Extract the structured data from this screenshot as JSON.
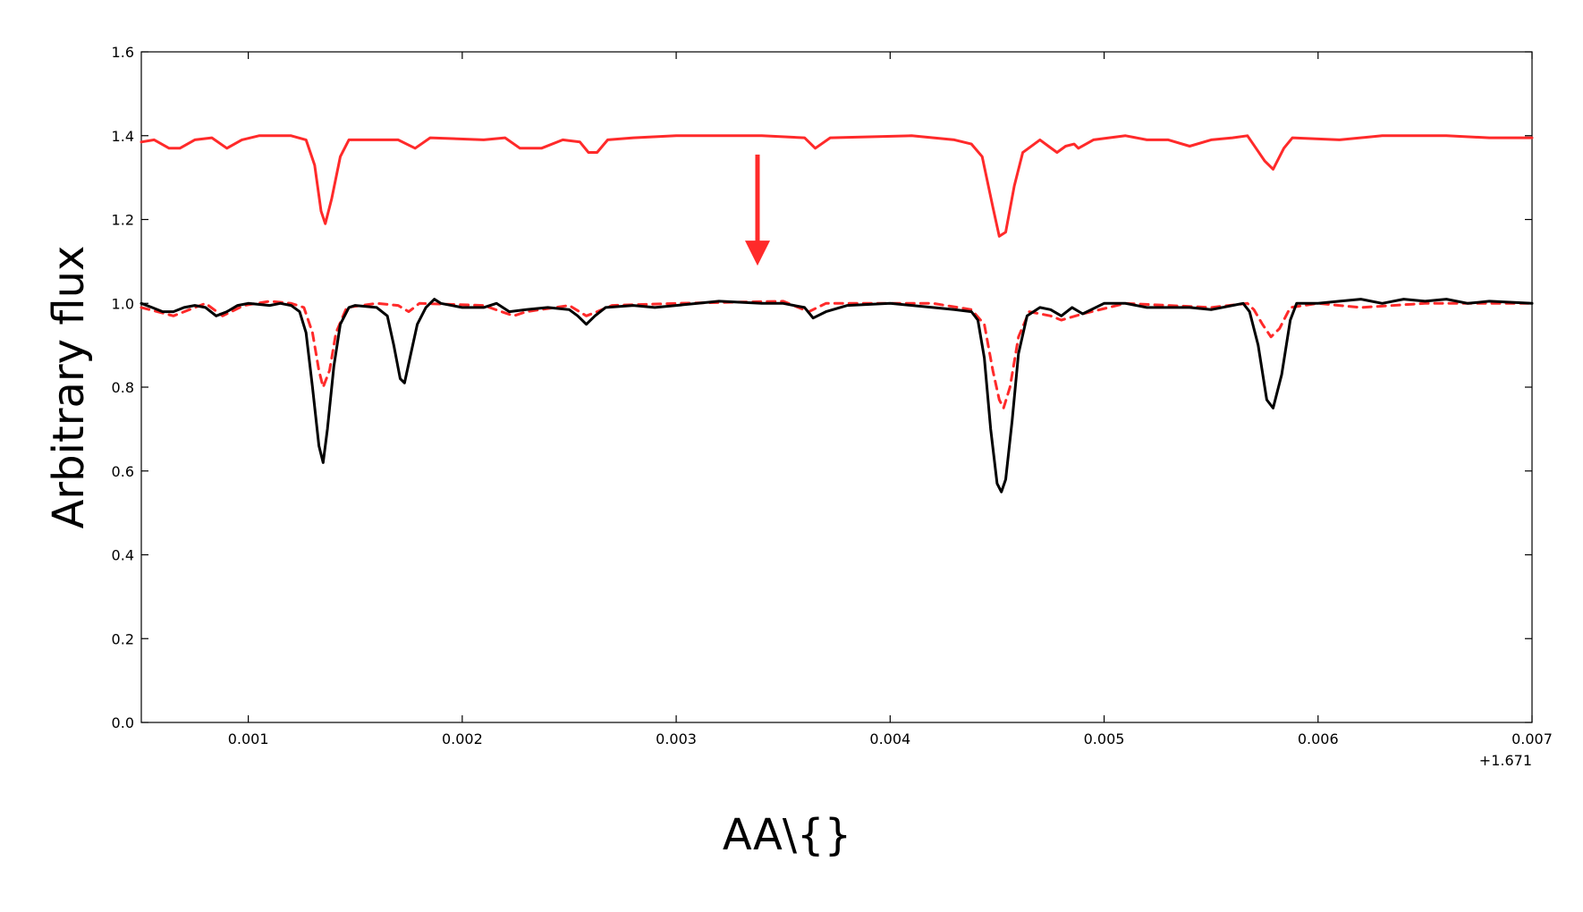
{
  "chart_data": {
    "type": "line",
    "xlabel": "AA\\{}",
    "ylabel": "Arbitrary flux",
    "x_offset_label": "+1.671",
    "xlim": [
      0.0005,
      0.007
    ],
    "ylim": [
      0.0,
      1.6
    ],
    "x_ticks": [
      0.001,
      0.002,
      0.003,
      0.004,
      0.005,
      0.006,
      0.007
    ],
    "x_tick_labels": [
      "0.001",
      "0.002",
      "0.003",
      "0.004",
      "0.005",
      "0.006",
      "0.007"
    ],
    "y_ticks": [
      0.0,
      0.2,
      0.4,
      0.6,
      0.8,
      1.0,
      1.2,
      1.4,
      1.6
    ],
    "y_tick_labels": [
      "0.0",
      "0.2",
      "0.4",
      "0.6",
      "0.8",
      "1.0",
      "1.2",
      "1.4",
      "1.6"
    ],
    "grid": false,
    "annotation_arrow": {
      "x": 0.00338,
      "y_start": 1.355,
      "y_end": 1.09,
      "color": "#ff2a2a"
    },
    "series": [
      {
        "color": "#ff2a2a",
        "style": "solid",
        "points": [
          [
            0.0005,
            1.385
          ],
          [
            0.00056,
            1.39
          ],
          [
            0.00063,
            1.37
          ],
          [
            0.00068,
            1.37
          ],
          [
            0.00075,
            1.39
          ],
          [
            0.00083,
            1.395
          ],
          [
            0.0009,
            1.37
          ],
          [
            0.00097,
            1.39
          ],
          [
            0.00105,
            1.4
          ],
          [
            0.0012,
            1.4
          ],
          [
            0.00127,
            1.39
          ],
          [
            0.00131,
            1.33
          ],
          [
            0.00134,
            1.22
          ],
          [
            0.00136,
            1.19
          ],
          [
            0.00139,
            1.25
          ],
          [
            0.00143,
            1.35
          ],
          [
            0.00147,
            1.39
          ],
          [
            0.0016,
            1.39
          ],
          [
            0.0017,
            1.39
          ],
          [
            0.00178,
            1.37
          ],
          [
            0.00185,
            1.395
          ],
          [
            0.0021,
            1.39
          ],
          [
            0.0022,
            1.395
          ],
          [
            0.00227,
            1.37
          ],
          [
            0.00237,
            1.37
          ],
          [
            0.00247,
            1.39
          ],
          [
            0.00255,
            1.385
          ],
          [
            0.00259,
            1.36
          ],
          [
            0.00263,
            1.36
          ],
          [
            0.00268,
            1.39
          ],
          [
            0.0028,
            1.395
          ],
          [
            0.003,
            1.4
          ],
          [
            0.0034,
            1.4
          ],
          [
            0.0036,
            1.395
          ],
          [
            0.00365,
            1.37
          ],
          [
            0.00372,
            1.395
          ],
          [
            0.0041,
            1.4
          ],
          [
            0.0043,
            1.39
          ],
          [
            0.00438,
            1.38
          ],
          [
            0.00443,
            1.35
          ],
          [
            0.00448,
            1.23
          ],
          [
            0.00451,
            1.16
          ],
          [
            0.00454,
            1.17
          ],
          [
            0.00458,
            1.28
          ],
          [
            0.00462,
            1.36
          ],
          [
            0.0047,
            1.39
          ],
          [
            0.00474,
            1.375
          ],
          [
            0.00478,
            1.36
          ],
          [
            0.00482,
            1.375
          ],
          [
            0.00486,
            1.38
          ],
          [
            0.00488,
            1.37
          ],
          [
            0.00495,
            1.39
          ],
          [
            0.0051,
            1.4
          ],
          [
            0.0052,
            1.39
          ],
          [
            0.0053,
            1.39
          ],
          [
            0.0054,
            1.375
          ],
          [
            0.0055,
            1.39
          ],
          [
            0.0056,
            1.395
          ],
          [
            0.00567,
            1.4
          ],
          [
            0.00571,
            1.37
          ],
          [
            0.00575,
            1.34
          ],
          [
            0.00579,
            1.32
          ],
          [
            0.00584,
            1.37
          ],
          [
            0.00588,
            1.395
          ],
          [
            0.0061,
            1.39
          ],
          [
            0.0063,
            1.4
          ],
          [
            0.0066,
            1.4
          ],
          [
            0.0068,
            1.395
          ],
          [
            0.007,
            1.395
          ]
        ]
      },
      {
        "color": "#ff2a2a",
        "style": "dashed",
        "points": [
          [
            0.0005,
            0.99
          ],
          [
            0.00065,
            0.97
          ],
          [
            0.0008,
            1.0
          ],
          [
            0.00088,
            0.97
          ],
          [
            0.00098,
            0.995
          ],
          [
            0.0011,
            1.005
          ],
          [
            0.0012,
            1.0
          ],
          [
            0.00126,
            0.99
          ],
          [
            0.0013,
            0.93
          ],
          [
            0.00133,
            0.84
          ],
          [
            0.00135,
            0.8
          ],
          [
            0.00138,
            0.84
          ],
          [
            0.00141,
            0.93
          ],
          [
            0.00146,
            0.99
          ],
          [
            0.0016,
            1.0
          ],
          [
            0.0017,
            0.995
          ],
          [
            0.00175,
            0.98
          ],
          [
            0.0018,
            1.0
          ],
          [
            0.0021,
            0.995
          ],
          [
            0.00224,
            0.97
          ],
          [
            0.0023,
            0.98
          ],
          [
            0.0025,
            0.995
          ],
          [
            0.00258,
            0.97
          ],
          [
            0.00263,
            0.98
          ],
          [
            0.0027,
            0.995
          ],
          [
            0.003,
            1.0
          ],
          [
            0.0035,
            1.005
          ],
          [
            0.00362,
            0.98
          ],
          [
            0.0037,
            1.0
          ],
          [
            0.0042,
            1.0
          ],
          [
            0.00438,
            0.985
          ],
          [
            0.00444,
            0.95
          ],
          [
            0.00448,
            0.84
          ],
          [
            0.00451,
            0.77
          ],
          [
            0.00453,
            0.75
          ],
          [
            0.00456,
            0.8
          ],
          [
            0.0046,
            0.92
          ],
          [
            0.00465,
            0.98
          ],
          [
            0.00475,
            0.97
          ],
          [
            0.0048,
            0.96
          ],
          [
            0.0049,
            0.975
          ],
          [
            0.0051,
            1.0
          ],
          [
            0.0053,
            0.995
          ],
          [
            0.0055,
            0.99
          ],
          [
            0.00567,
            1.0
          ],
          [
            0.0057,
            0.985
          ],
          [
            0.00574,
            0.95
          ],
          [
            0.00578,
            0.92
          ],
          [
            0.00582,
            0.94
          ],
          [
            0.00587,
            0.99
          ],
          [
            0.006,
            1.0
          ],
          [
            0.0062,
            0.99
          ],
          [
            0.0065,
            1.0
          ],
          [
            0.007,
            1.0
          ]
        ]
      },
      {
        "color": "#000000",
        "style": "solid",
        "points": [
          [
            0.0005,
            1.0
          ],
          [
            0.00055,
            0.99
          ],
          [
            0.0006,
            0.98
          ],
          [
            0.00065,
            0.98
          ],
          [
            0.0007,
            0.99
          ],
          [
            0.00075,
            0.995
          ],
          [
            0.0008,
            0.99
          ],
          [
            0.00085,
            0.97
          ],
          [
            0.0009,
            0.98
          ],
          [
            0.00095,
            0.995
          ],
          [
            0.001,
            1.0
          ],
          [
            0.0011,
            0.995
          ],
          [
            0.00115,
            1.0
          ],
          [
            0.0012,
            0.995
          ],
          [
            0.00124,
            0.98
          ],
          [
            0.00127,
            0.93
          ],
          [
            0.0013,
            0.8
          ],
          [
            0.00133,
            0.66
          ],
          [
            0.00135,
            0.62
          ],
          [
            0.00137,
            0.7
          ],
          [
            0.0014,
            0.85
          ],
          [
            0.00143,
            0.95
          ],
          [
            0.00147,
            0.99
          ],
          [
            0.0015,
            0.995
          ],
          [
            0.0016,
            0.99
          ],
          [
            0.00165,
            0.97
          ],
          [
            0.00168,
            0.9
          ],
          [
            0.00171,
            0.82
          ],
          [
            0.00173,
            0.81
          ],
          [
            0.00176,
            0.88
          ],
          [
            0.00179,
            0.95
          ],
          [
            0.00183,
            0.99
          ],
          [
            0.00187,
            1.01
          ],
          [
            0.0019,
            1.0
          ],
          [
            0.002,
            0.99
          ],
          [
            0.0021,
            0.99
          ],
          [
            0.00216,
            1.0
          ],
          [
            0.00222,
            0.98
          ],
          [
            0.0023,
            0.985
          ],
          [
            0.0024,
            0.99
          ],
          [
            0.0025,
            0.985
          ],
          [
            0.00254,
            0.97
          ],
          [
            0.00258,
            0.95
          ],
          [
            0.00262,
            0.97
          ],
          [
            0.00267,
            0.99
          ],
          [
            0.0028,
            0.995
          ],
          [
            0.0029,
            0.99
          ],
          [
            0.003,
            0.995
          ],
          [
            0.0031,
            1.0
          ],
          [
            0.0032,
            1.005
          ],
          [
            0.0034,
            1.0
          ],
          [
            0.0035,
            1.0
          ],
          [
            0.0036,
            0.99
          ],
          [
            0.00364,
            0.965
          ],
          [
            0.0037,
            0.98
          ],
          [
            0.0038,
            0.995
          ],
          [
            0.004,
            1.0
          ],
          [
            0.0042,
            0.99
          ],
          [
            0.0043,
            0.985
          ],
          [
            0.00438,
            0.98
          ],
          [
            0.00441,
            0.96
          ],
          [
            0.00444,
            0.87
          ],
          [
            0.00447,
            0.7
          ],
          [
            0.0045,
            0.57
          ],
          [
            0.00452,
            0.55
          ],
          [
            0.00454,
            0.58
          ],
          [
            0.00457,
            0.72
          ],
          [
            0.0046,
            0.88
          ],
          [
            0.00464,
            0.97
          ],
          [
            0.0047,
            0.99
          ],
          [
            0.00475,
            0.985
          ],
          [
            0.0048,
            0.97
          ],
          [
            0.00485,
            0.99
          ],
          [
            0.0049,
            0.975
          ],
          [
            0.005,
            1.0
          ],
          [
            0.0051,
            1.0
          ],
          [
            0.0052,
            0.99
          ],
          [
            0.0053,
            0.99
          ],
          [
            0.0054,
            0.99
          ],
          [
            0.0055,
            0.985
          ],
          [
            0.0056,
            0.995
          ],
          [
            0.00565,
            1.0
          ],
          [
            0.00568,
            0.98
          ],
          [
            0.00572,
            0.9
          ],
          [
            0.00576,
            0.77
          ],
          [
            0.00579,
            0.75
          ],
          [
            0.00583,
            0.83
          ],
          [
            0.00587,
            0.96
          ],
          [
            0.0059,
            1.0
          ],
          [
            0.006,
            1.0
          ],
          [
            0.0061,
            1.005
          ],
          [
            0.0062,
            1.01
          ],
          [
            0.0063,
            1.0
          ],
          [
            0.0064,
            1.01
          ],
          [
            0.0065,
            1.005
          ],
          [
            0.0066,
            1.01
          ],
          [
            0.0067,
            1.0
          ],
          [
            0.0068,
            1.005
          ],
          [
            0.007,
            1.0
          ]
        ]
      }
    ]
  }
}
